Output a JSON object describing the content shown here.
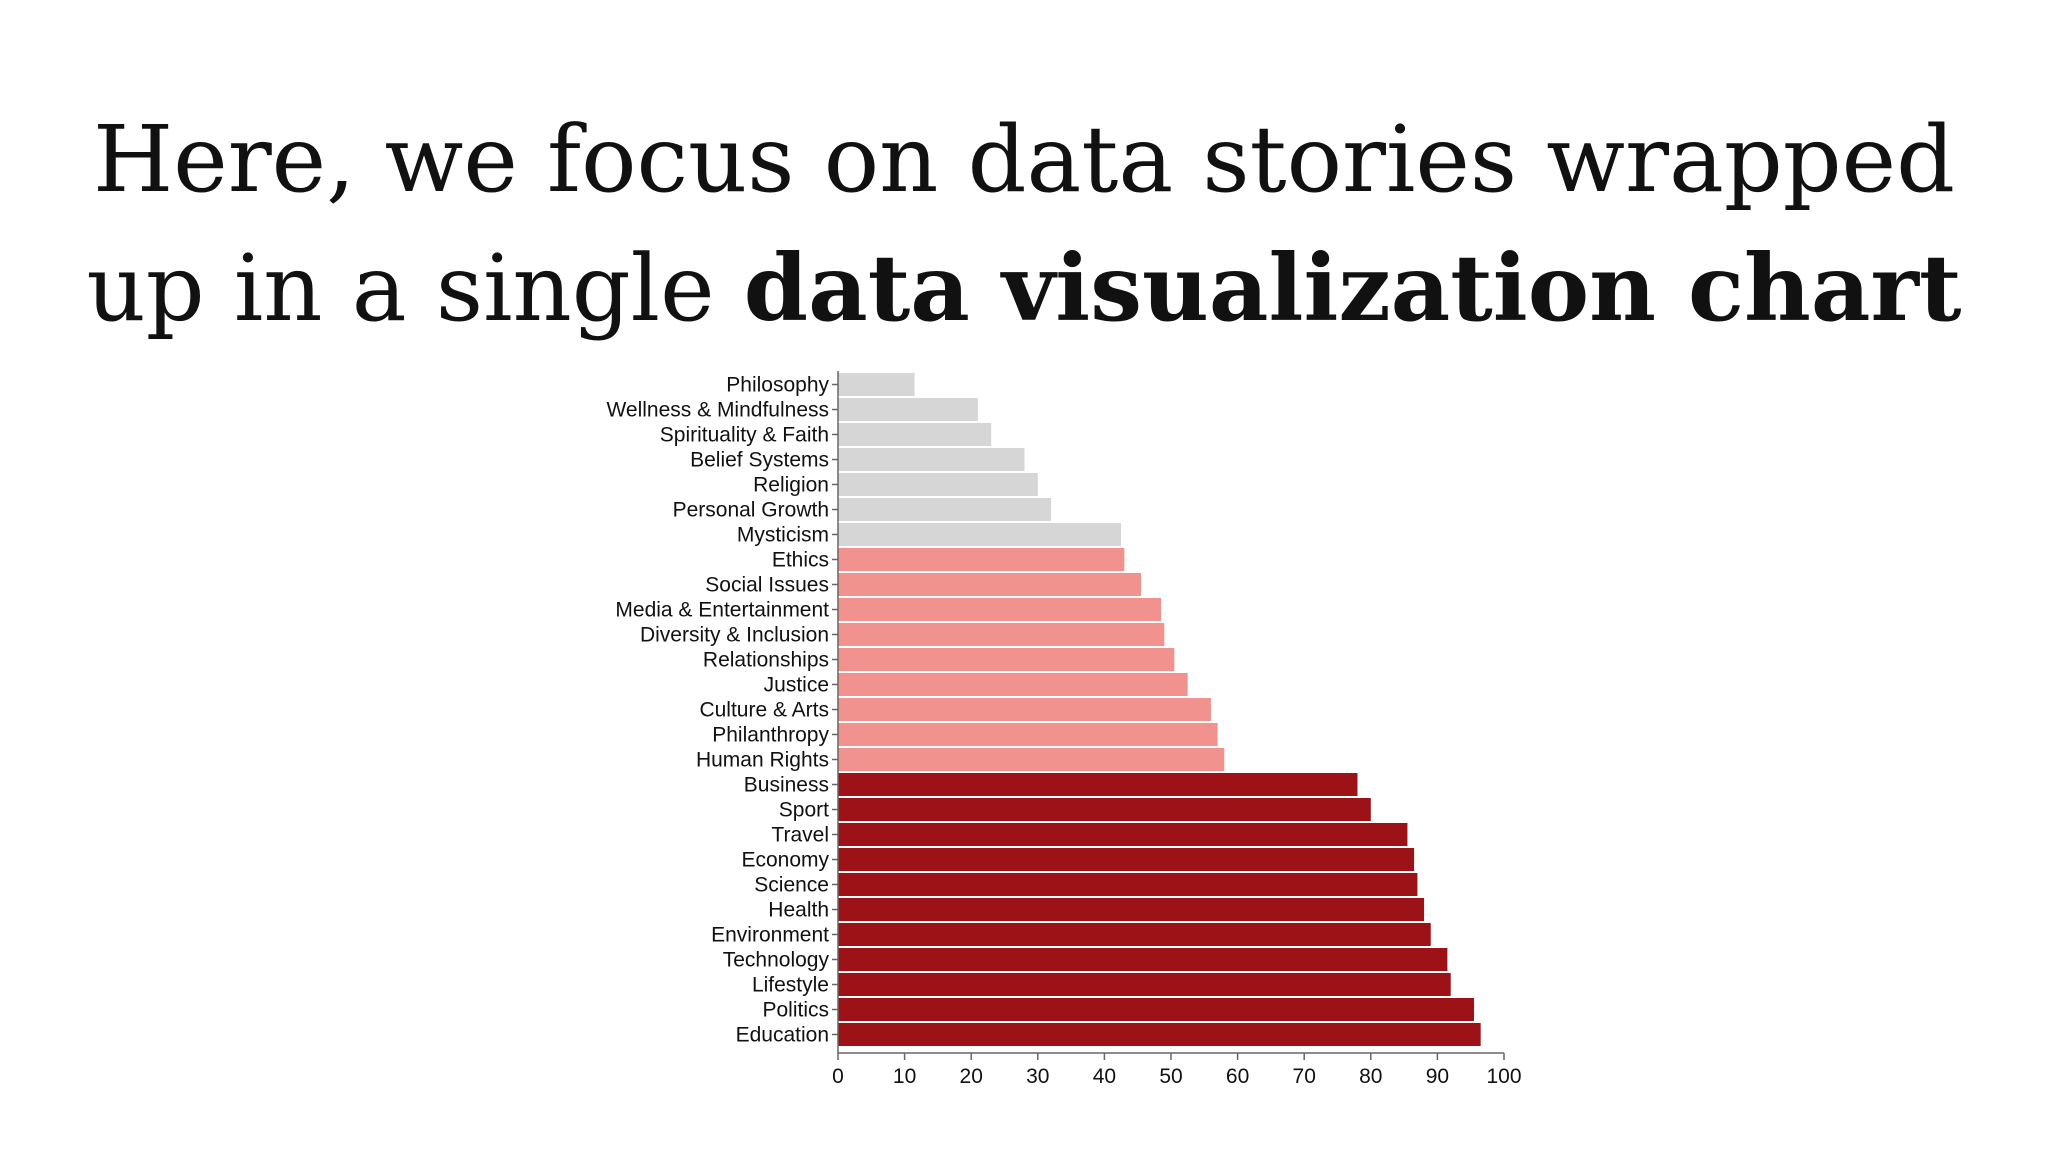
{
  "headline": {
    "line1": "Here, we focus on data stories wrapped",
    "line2_plain": "up in a single ",
    "line2_bold": "data visualization chart"
  },
  "colors": {
    "gray": "#d6d6d6",
    "pink": "#f2928f",
    "red": "#9c1216",
    "axis": "#666666"
  },
  "chart_data": {
    "type": "bar",
    "orientation": "horizontal",
    "xlim": [
      0,
      100
    ],
    "x_ticks": [
      0,
      10,
      20,
      30,
      40,
      50,
      60,
      70,
      80,
      90,
      100
    ],
    "grid": false,
    "bars": [
      {
        "category": "Philosophy",
        "value": 11.5,
        "group": "gray"
      },
      {
        "category": "Wellness & Mindfulness",
        "value": 21,
        "group": "gray"
      },
      {
        "category": "Spirituality & Faith",
        "value": 23,
        "group": "gray"
      },
      {
        "category": "Belief Systems",
        "value": 28,
        "group": "gray"
      },
      {
        "category": "Religion",
        "value": 30,
        "group": "gray"
      },
      {
        "category": "Personal Growth",
        "value": 32,
        "group": "gray"
      },
      {
        "category": "Mysticism",
        "value": 42.5,
        "group": "gray"
      },
      {
        "category": "Ethics",
        "value": 43,
        "group": "pink"
      },
      {
        "category": "Social Issues",
        "value": 45.5,
        "group": "pink"
      },
      {
        "category": "Media & Entertainment",
        "value": 48.5,
        "group": "pink"
      },
      {
        "category": "Diversity & Inclusion",
        "value": 49,
        "group": "pink"
      },
      {
        "category": "Relationships",
        "value": 50.5,
        "group": "pink"
      },
      {
        "category": "Justice",
        "value": 52.5,
        "group": "pink"
      },
      {
        "category": "Culture & Arts",
        "value": 56,
        "group": "pink"
      },
      {
        "category": "Philanthropy",
        "value": 57,
        "group": "pink"
      },
      {
        "category": "Human Rights",
        "value": 58,
        "group": "pink"
      },
      {
        "category": "Business",
        "value": 78,
        "group": "red"
      },
      {
        "category": "Sport",
        "value": 80,
        "group": "red"
      },
      {
        "category": "Travel",
        "value": 85.5,
        "group": "red"
      },
      {
        "category": "Economy",
        "value": 86.5,
        "group": "red"
      },
      {
        "category": "Science",
        "value": 87,
        "group": "red"
      },
      {
        "category": "Health",
        "value": 88,
        "group": "red"
      },
      {
        "category": "Environment",
        "value": 89,
        "group": "red"
      },
      {
        "category": "Technology",
        "value": 91.5,
        "group": "red"
      },
      {
        "category": "Lifestyle",
        "value": 92,
        "group": "red"
      },
      {
        "category": "Politics",
        "value": 95.5,
        "group": "red"
      },
      {
        "category": "Education",
        "value": 96.5,
        "group": "red"
      }
    ]
  }
}
